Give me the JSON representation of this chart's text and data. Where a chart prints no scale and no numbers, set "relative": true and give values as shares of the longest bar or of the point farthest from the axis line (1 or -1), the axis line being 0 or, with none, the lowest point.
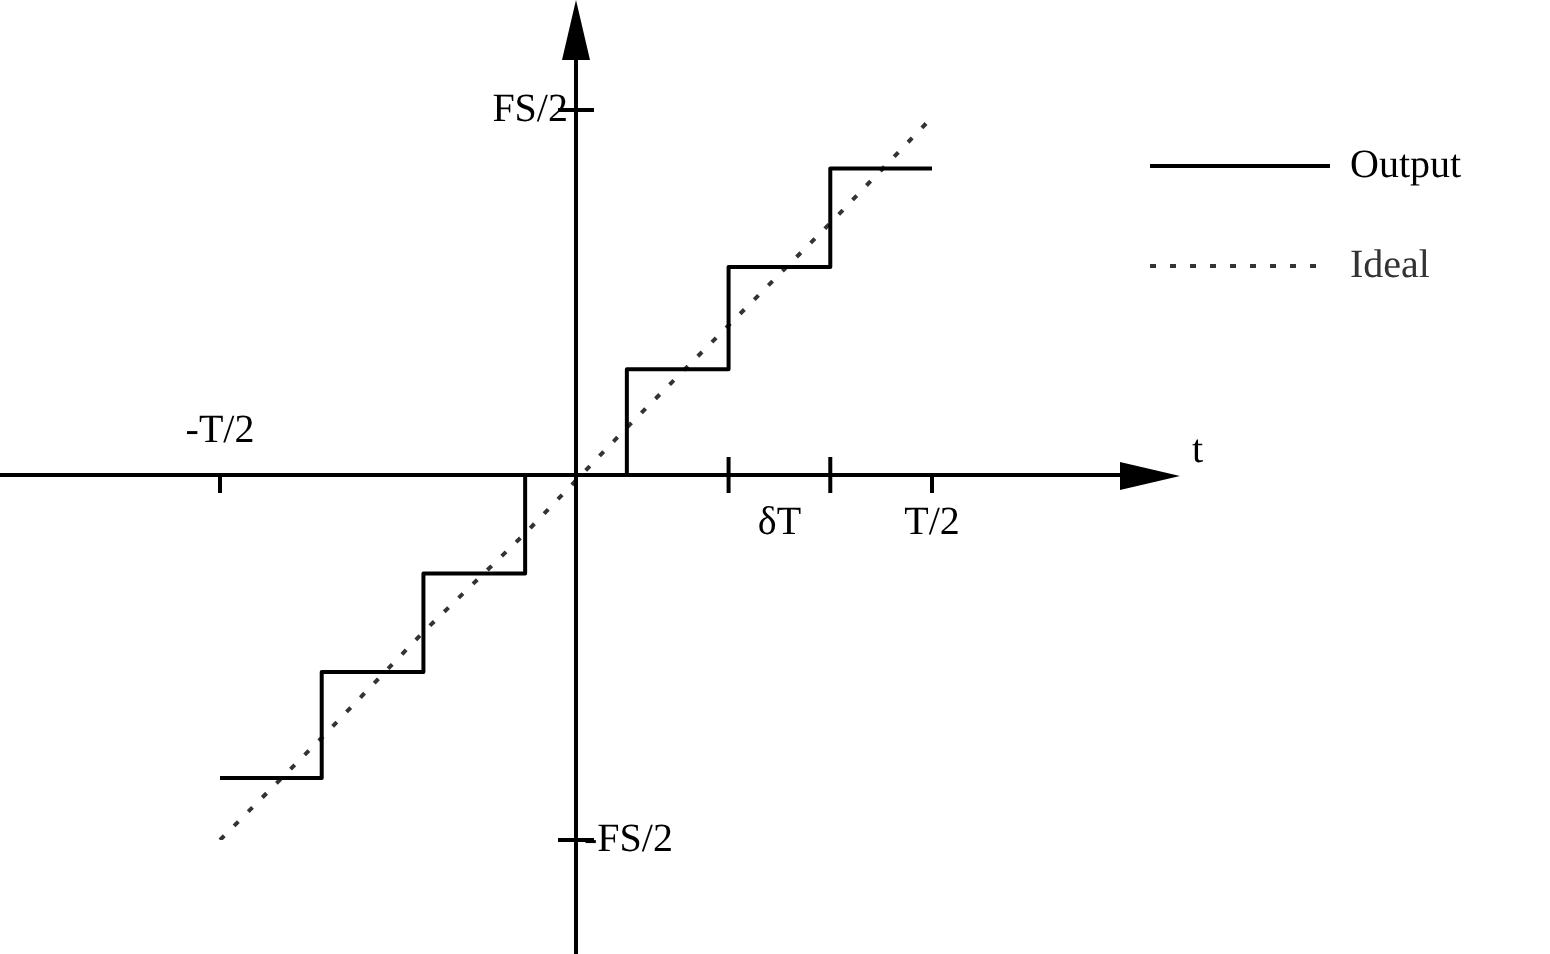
{
  "chart_data": {
    "type": "line",
    "relative": true,
    "categories": [
      "-T/2",
      null,
      null,
      null,
      null,
      null,
      null,
      "T/2"
    ],
    "annotations": [
      "t",
      "FS/2",
      "-FS/2",
      "δT"
    ],
    "legend": "top right",
    "marker": "none",
    "series": [
      {
        "name": "Output",
        "type": "step",
        "color": "#000000",
        "line_style": "solid",
        "values": [
          -0.83,
          -0.54,
          -0.27,
          0,
          0.29,
          0.57,
          0.84,
          0.84
        ]
      },
      {
        "name": "Ideal",
        "color": "#333333",
        "line_style": "dotted",
        "values": [
          -1,
          -0.72,
          -0.43,
          -0.16,
          0.13,
          0.41,
          0.69,
          0.98
        ]
      }
    ]
  }
}
